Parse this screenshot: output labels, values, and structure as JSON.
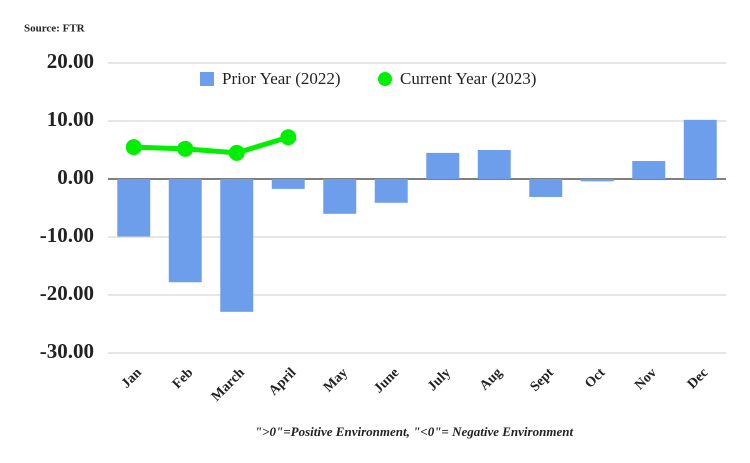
{
  "chart_data": {
    "type": "bar",
    "source": "Source: FTR",
    "footnote": "\">0\"=Positive Environment, \"<0\"= Negative Environment",
    "categories": [
      "Jan",
      "Feb",
      "March",
      "April",
      "May",
      "June",
      "July",
      "Aug",
      "Sept",
      "Oct",
      "Nov",
      "Dec"
    ],
    "series": [
      {
        "name": "Prior Year (2022)",
        "type": "bar",
        "color": "#6d9eeb",
        "values": [
          -9.9,
          -17.8,
          -22.9,
          -1.7,
          -6.0,
          -4.1,
          4.5,
          5.0,
          -3.1,
          -0.4,
          3.1,
          10.2
        ]
      },
      {
        "name": "Current Year (2023)",
        "type": "line",
        "color": "#00ee00",
        "values": [
          5.5,
          5.2,
          4.5,
          7.2,
          null,
          null,
          null,
          null,
          null,
          null,
          null,
          null
        ]
      }
    ],
    "ylim": [
      -30,
      20
    ],
    "yticks": [
      {
        "value": -30,
        "label": "-30.00"
      },
      {
        "value": -20,
        "label": "-20.00"
      },
      {
        "value": -10,
        "label": "-10.00"
      },
      {
        "value": 0,
        "label": "0.00"
      },
      {
        "value": 10,
        "label": "10.00"
      },
      {
        "value": 20,
        "label": "20.00"
      }
    ],
    "grid": true,
    "legend": "top"
  }
}
